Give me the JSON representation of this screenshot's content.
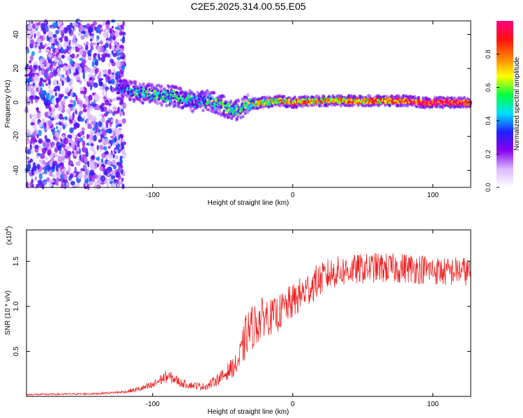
{
  "title": "C2E5.2025.314.00.55.E05",
  "top_panel": {
    "chart_data": {
      "type": "heatmap",
      "title": "C2E5.2025.314.00.55.E05",
      "xlabel": "Height of straight line (km)",
      "ylabel": "Frequency (Hz)",
      "xlim": [
        -190,
        127
      ],
      "ylim": [
        -50,
        48
      ],
      "x_ticks": [
        -100,
        0,
        100
      ],
      "x_tick_labels": [
        "-100",
        "0",
        "100"
      ],
      "y_ticks": [
        -40,
        -20,
        0,
        20,
        40
      ],
      "y_tick_labels": [
        "-40",
        "-20",
        "0",
        "20",
        "40"
      ],
      "noise_region": {
        "x_from": -190,
        "x_to": -120,
        "description": "scattered low amplitude"
      },
      "ridge": {
        "x": [
          -125,
          -110,
          -100,
          -90,
          -80,
          -70,
          -60,
          -50,
          -40,
          -35,
          -30,
          -20,
          -10,
          0,
          20,
          40,
          60,
          80,
          90,
          100,
          127
        ],
        "frequency": [
          8,
          6,
          5,
          4,
          3,
          0,
          1,
          -2,
          -5,
          -2,
          -1,
          0,
          1,
          0,
          1,
          1,
          1,
          1,
          0,
          0,
          0
        ],
        "amplitude": [
          0.35,
          0.45,
          0.5,
          0.48,
          0.45,
          0.4,
          0.5,
          0.55,
          0.5,
          0.55,
          0.65,
          0.7,
          0.75,
          0.8,
          0.8,
          0.82,
          0.85,
          0.9,
          0.95,
          1.0,
          1.0
        ]
      }
    },
    "colorbar": {
      "label": "Normalized spectral amplitude",
      "ticks": [
        0.0,
        0.2,
        0.4,
        0.6,
        0.8
      ],
      "tick_labels": [
        "0.0",
        "0.2",
        "0.4",
        "0.6",
        "0.8"
      ],
      "range": [
        0,
        1
      ],
      "colors": [
        "#ffffff",
        "#d9b8ff",
        "#8800ee",
        "#2020ff",
        "#00e0ff",
        "#00ff40",
        "#ffff00",
        "#ff8000",
        "#ff1010",
        "#ff0080"
      ]
    }
  },
  "bottom_panel": {
    "chart_data": {
      "type": "line",
      "xlabel": "Height of straight line (km)",
      "ylabel": "SNR (10 * v/v)",
      "multiplier_label": "(x10",
      "multiplier_exponent": "4",
      "multiplier_close": ")",
      "xlim": [
        -190,
        127
      ],
      "ylim": [
        0,
        1.85
      ],
      "x_ticks": [
        -100,
        0,
        100
      ],
      "x_tick_labels": [
        "-100",
        "0",
        "100"
      ],
      "y_ticks": [
        0.5,
        1.0,
        1.5
      ],
      "y_tick_labels": [
        "0.5",
        "1.0",
        "1.5"
      ],
      "series": [
        {
          "name": "SNR",
          "color": "#ee2222",
          "x": [
            -190,
            -140,
            -120,
            -110,
            -100,
            -95,
            -90,
            -85,
            -80,
            -75,
            -70,
            -65,
            -60,
            -55,
            -50,
            -45,
            -40,
            -37,
            -33,
            -30,
            -25,
            -20,
            -15,
            -10,
            -5,
            0,
            5,
            10,
            15,
            20,
            25,
            30,
            40,
            50,
            60,
            70,
            80,
            90,
            100,
            110,
            120,
            127
          ],
          "y": [
            0.02,
            0.03,
            0.05,
            0.08,
            0.12,
            0.18,
            0.22,
            0.2,
            0.15,
            0.13,
            0.12,
            0.11,
            0.12,
            0.18,
            0.22,
            0.3,
            0.35,
            0.45,
            0.7,
            0.75,
            0.82,
            0.9,
            0.88,
            0.92,
            1.0,
            1.05,
            1.12,
            1.18,
            1.25,
            1.3,
            1.35,
            1.38,
            1.4,
            1.42,
            1.43,
            1.42,
            1.43,
            1.42,
            1.4,
            1.38,
            1.4,
            1.38
          ],
          "noise_amplitude": [
            0.01,
            0.01,
            0.015,
            0.03,
            0.05,
            0.06,
            0.07,
            0.06,
            0.05,
            0.04,
            0.04,
            0.04,
            0.05,
            0.06,
            0.08,
            0.1,
            0.12,
            0.2,
            0.25,
            0.25,
            0.25,
            0.22,
            0.2,
            0.2,
            0.2,
            0.2,
            0.2,
            0.2,
            0.2,
            0.18,
            0.18,
            0.18,
            0.17,
            0.17,
            0.17,
            0.17,
            0.17,
            0.17,
            0.16,
            0.16,
            0.16,
            0.16
          ]
        }
      ]
    }
  }
}
